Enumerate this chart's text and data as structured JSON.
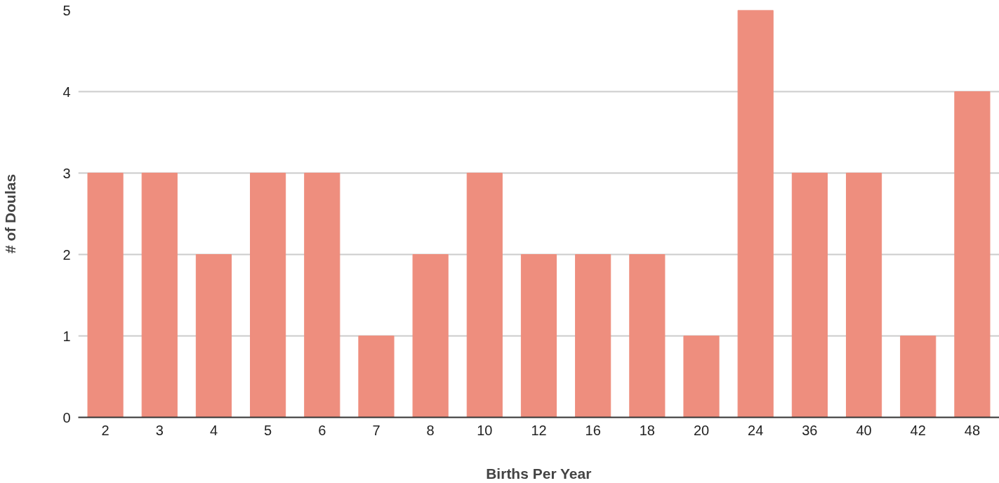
{
  "chart_data": {
    "type": "bar",
    "xlabel": "Births Per Year",
    "ylabel": "# of Doulas",
    "categories": [
      "2",
      "3",
      "4",
      "5",
      "6",
      "7",
      "8",
      "10",
      "12",
      "16",
      "18",
      "20",
      "24",
      "36",
      "40",
      "42",
      "48"
    ],
    "values": [
      3,
      3,
      2,
      3,
      3,
      1,
      2,
      3,
      2,
      2,
      2,
      1,
      5,
      3,
      3,
      1,
      4
    ],
    "color": "#ee8e7e",
    "ylim": [
      0,
      5
    ],
    "yticks": [
      0,
      1,
      2,
      3,
      4,
      5
    ],
    "grid": "y"
  }
}
